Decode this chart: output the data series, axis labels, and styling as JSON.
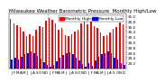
{
  "title": "Milwaukee Weather Barometric Pressure  Monthly High/Low",
  "background_color": "#ffffff",
  "high_color": "#ff0000",
  "low_color": "#0000ff",
  "legend_high": "Monthly High",
  "legend_low": "Monthly Low",
  "months": [
    "J",
    "F",
    "M",
    "A",
    "M",
    "J",
    "J",
    "A",
    "S",
    "O",
    "N",
    "D",
    "J",
    "F",
    "M",
    "A",
    "M",
    "J",
    "J",
    "A",
    "S",
    "O",
    "N",
    "D",
    "J",
    "F",
    "M",
    "A",
    "M",
    "J",
    "J",
    "A",
    "S",
    "O",
    "N",
    "D"
  ],
  "highs": [
    30.88,
    30.73,
    30.65,
    30.59,
    30.42,
    30.24,
    30.3,
    30.25,
    30.48,
    30.62,
    30.6,
    30.82,
    30.93,
    30.87,
    30.71,
    30.48,
    30.55,
    30.27,
    30.23,
    30.31,
    30.4,
    30.49,
    30.72,
    30.85,
    30.69,
    30.79,
    30.63,
    30.54,
    30.36,
    30.23,
    30.29,
    30.37,
    30.53,
    30.6,
    30.74,
    30.7
  ],
  "lows": [
    29.35,
    29.42,
    29.35,
    29.45,
    29.55,
    29.6,
    29.65,
    29.58,
    29.48,
    29.38,
    29.25,
    29.15,
    29.08,
    29.15,
    29.28,
    29.42,
    29.52,
    29.6,
    29.62,
    29.55,
    29.4,
    29.3,
    29.18,
    29.08,
    29.2,
    29.1,
    29.32,
    29.44,
    29.54,
    29.6,
    29.64,
    29.57,
    29.42,
    29.34,
    29.22,
    29.15
  ],
  "ylim_min": 29.0,
  "ylim_max": 31.1,
  "yticks": [
    29.2,
    29.4,
    29.6,
    29.8,
    30.0,
    30.2,
    30.4,
    30.6,
    30.8,
    31.0
  ],
  "ytick_labels": [
    "29.2",
    "29.4",
    "29.6",
    "29.8",
    "30.0",
    "30.2",
    "30.4",
    "30.6",
    "30.8",
    "31.0"
  ],
  "dashed_after": [
    11,
    23
  ],
  "title_fontsize": 4.0,
  "tick_fontsize": 3.0,
  "legend_fontsize": 3.2,
  "bar_width": 0.42
}
